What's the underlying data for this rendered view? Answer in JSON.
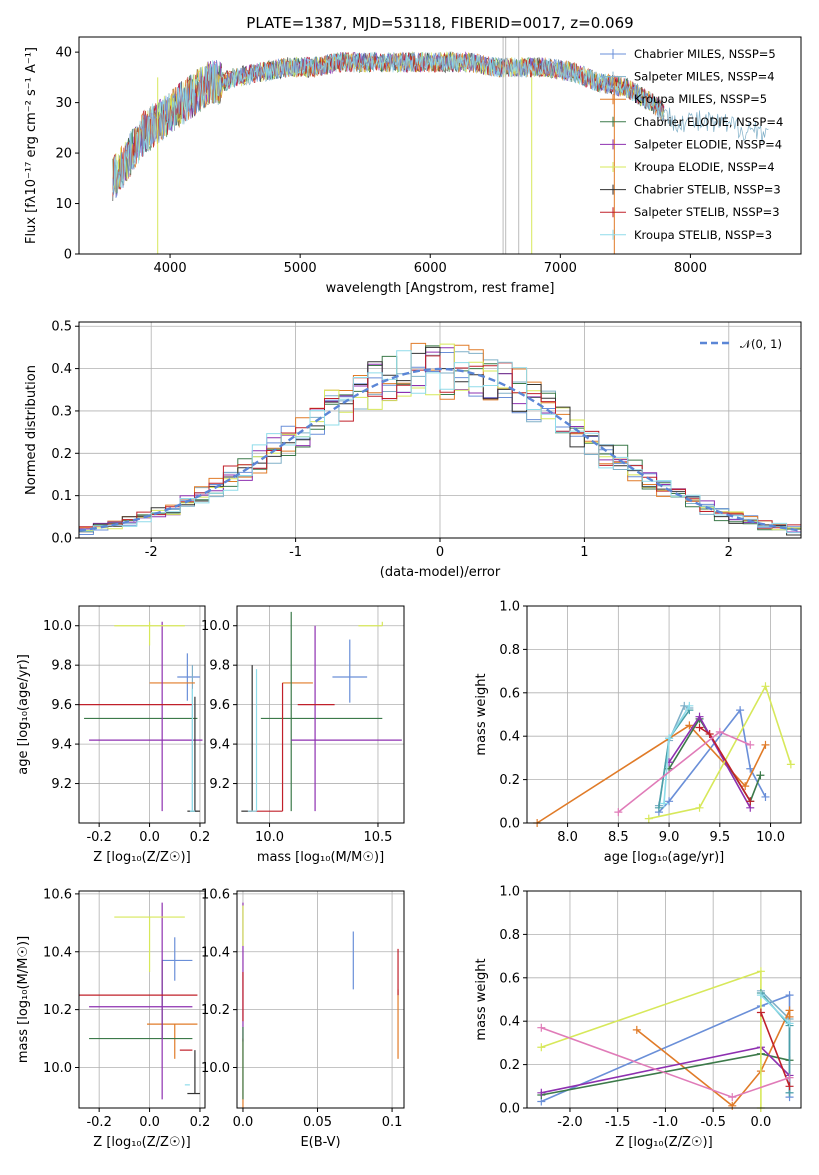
{
  "colors": [
    "#6a8fd8",
    "#80b0c8",
    "#e07b28",
    "#3c7a4a",
    "#8e30b0",
    "#d7e85a",
    "#333333",
    "#c0202a",
    "#8fdcea"
  ],
  "chart_data": [
    {
      "type": "line",
      "title": "PLATE=1387, MJD=53118, FIBERID=0017, z=0.069",
      "xlabel": "wavelength [Angstrom, rest frame]",
      "ylabel": "Flux [f$_\\lambda$10$^{-17}$ erg cm$^{-2}$ s$^{-1}$ A$^{-1}$]",
      "xlim": [
        3300,
        8850
      ],
      "ylim": [
        0,
        43
      ],
      "xticks": [
        4000,
        5000,
        6000,
        7000,
        8000
      ],
      "yticks": [
        0,
        10,
        20,
        30,
        40
      ],
      "legend_position": "upper-right",
      "series": [
        {
          "name": "Chabrier MILES, N$_{SSP}$=5",
          "x": [
            3600,
            7800
          ],
          "values": [
            15,
            28
          ]
        },
        {
          "name": "Salpeter MILES, N$_{SSP}$=4",
          "x": [
            3600,
            7800
          ],
          "values": [
            15,
            28
          ]
        },
        {
          "name": "Kroupa MILES, N$_{SSP}$=5",
          "x": [
            3600,
            7800
          ],
          "values": [
            15,
            28
          ]
        },
        {
          "name": "Chabrier ELODIE, N$_{SSP}$=4",
          "x": [
            3600,
            7800
          ],
          "values": [
            15,
            28
          ]
        },
        {
          "name": "Salpeter ELODIE, N$_{SSP}$=4",
          "x": [
            3600,
            7800
          ],
          "values": [
            15,
            28
          ]
        },
        {
          "name": "Kroupa ELODIE, N$_{SSP}$=4",
          "x": [
            3600,
            7800
          ],
          "values": [
            15,
            28
          ]
        },
        {
          "name": "Chabrier STELIB, N$_{SSP}$=3",
          "x": [
            3600,
            7800
          ],
          "values": [
            15,
            28
          ]
        },
        {
          "name": "Salpeter STELIB, N$_{SSP}$=3",
          "x": [
            3600,
            7800
          ],
          "values": [
            15,
            28
          ]
        },
        {
          "name": "Kroupa STELIB, N$_{SSP}$=3",
          "x": [
            3600,
            7800
          ],
          "values": [
            15,
            28
          ]
        }
      ],
      "profile_x": [
        3560,
        3600,
        3700,
        3800,
        3900,
        4000,
        4100,
        4200,
        4300,
        4400,
        4500,
        4700,
        4900,
        5100,
        5300,
        5500,
        5700,
        5900,
        6100,
        6300,
        6500,
        6700,
        6900,
        7100,
        7300,
        7500,
        7700,
        7800
      ],
      "profile_y": [
        15,
        16,
        20,
        24,
        26,
        28,
        30,
        32,
        34,
        34,
        35,
        36,
        37,
        37,
        38,
        38,
        38,
        38,
        38,
        38,
        37,
        37,
        37,
        36,
        34,
        33,
        30,
        28
      ]
    },
    {
      "type": "histogram",
      "xlabel": "(data-model)/error",
      "ylabel": "Normed distribution",
      "xlim": [
        -2.5,
        2.5
      ],
      "ylim": [
        0,
        0.51
      ],
      "xticks": [
        -2,
        -1,
        0,
        1,
        2
      ],
      "yticks": [
        0.0,
        0.1,
        0.2,
        0.3,
        0.4,
        0.5
      ],
      "legend_position": "upper-right",
      "reference_curve": {
        "name": "$\\mathcal{N}(0,1)$",
        "mean": 0,
        "sigma": 1
      },
      "bin_edges": [
        -2.5,
        -2.4,
        -2.3,
        -2.2,
        -2.1,
        -2.0,
        -1.9,
        -1.8,
        -1.7,
        -1.6,
        -1.5,
        -1.4,
        -1.3,
        -1.2,
        -1.1,
        -1.0,
        -0.9,
        -0.8,
        -0.7,
        -0.6,
        -0.5,
        -0.4,
        -0.3,
        -0.2,
        -0.1,
        0.0,
        0.1,
        0.2,
        0.3,
        0.4,
        0.5,
        0.6,
        0.7,
        0.8,
        0.9,
        1.0,
        1.1,
        1.2,
        1.3,
        1.4,
        1.5,
        1.6,
        1.7,
        1.8,
        1.9,
        2.0,
        2.1,
        2.2,
        2.3,
        2.4,
        2.5
      ]
    },
    {
      "type": "errorbar",
      "xlabel": "Z [log$_{10}$(Z/Z$_\\odot$)]",
      "ylabel": "age  [log$_{10}$(age/yr)]",
      "xlim": [
        -0.28,
        0.22
      ],
      "ylim": [
        9.0,
        10.1
      ],
      "xticks": [
        -0.2,
        0.0,
        0.2
      ],
      "yticks": [
        9.2,
        9.4,
        9.6,
        9.8,
        10.0
      ],
      "points": [
        {
          "x": 0.15,
          "y": 9.74,
          "xerr": [
            0.04,
            0.05
          ],
          "yerr": [
            0.12,
            0.12
          ]
        },
        {
          "x": 0.17,
          "y": 9.06,
          "xerr": [
            0.01,
            0.02
          ],
          "yerr": [
            0.0,
            0.74
          ]
        },
        {
          "x": 0.1,
          "y": 9.71,
          "xerr": [
            0.1,
            0.08
          ],
          "yerr": [
            0.0,
            0.0
          ]
        },
        {
          "x": -0.02,
          "y": 9.53,
          "xerr": [
            0.24,
            0.21
          ],
          "yerr": [
            0.0,
            0.0
          ]
        },
        {
          "x": 0.05,
          "y": 9.42,
          "xerr": [
            0.29,
            0.16
          ],
          "yerr": [
            0.36,
            0.6
          ]
        },
        {
          "x": 0.0,
          "y": 10.0,
          "xerr": [
            0.14,
            0.14
          ],
          "yerr": [
            0.1,
            0.02
          ]
        },
        {
          "x": 0.18,
          "y": 9.06,
          "xerr": [
            0.03,
            0.02
          ],
          "yerr": [
            0.0,
            0.58
          ]
        },
        {
          "x": 0.05,
          "y": 9.6,
          "xerr": [
            0.33,
            0.12
          ],
          "yerr": [
            0.0,
            0.0
          ]
        },
        {
          "x": 0.17,
          "y": 9.06,
          "xerr": [
            0.01,
            0.01
          ],
          "yerr": [
            0.0,
            0.62
          ]
        }
      ]
    },
    {
      "type": "errorbar",
      "xlabel": "mass [log$_{10}$(M/M$_\\odot$)]",
      "ylabel": "",
      "xlim": [
        9.85,
        10.62
      ],
      "ylim": [
        9.0,
        10.1
      ],
      "xticks": [
        10.0,
        10.5
      ],
      "yticks": [
        9.2,
        9.4,
        9.6,
        9.8,
        10.0
      ],
      "points": [
        {
          "x": 10.37,
          "y": 9.74,
          "xerr": [
            0.08,
            0.08
          ],
          "yerr": [
            0.13,
            0.19
          ]
        },
        {
          "x": 10.15,
          "y": 9.71,
          "xerr": [
            0.09,
            0.05
          ],
          "yerr": [
            0.0,
            0.0
          ]
        },
        {
          "x": 10.1,
          "y": 9.53,
          "xerr": [
            0.14,
            0.42
          ],
          "yerr": [
            0.47,
            0.54
          ]
        },
        {
          "x": 10.21,
          "y": 9.42,
          "xerr": [
            0.11,
            0.4
          ],
          "yerr": [
            0.36,
            0.58
          ]
        },
        {
          "x": 10.52,
          "y": 10.0,
          "xerr": [
            0.11,
            0.0
          ],
          "yerr": [
            0.0,
            0.02
          ]
        },
        {
          "x": 9.92,
          "y": 9.06,
          "xerr": [
            0.05,
            0.0
          ],
          "yerr": [
            0.0,
            0.74
          ]
        },
        {
          "x": 10.06,
          "y": 9.06,
          "xerr": [
            0.16,
            0.0
          ],
          "yerr": [
            0.0,
            0.65
          ]
        },
        {
          "x": 10.25,
          "y": 9.6,
          "xerr": [
            0.12,
            0.05
          ],
          "yerr": [
            0.0,
            0.0
          ]
        },
        {
          "x": 9.94,
          "y": 9.06,
          "xerr": [
            0.04,
            0.0
          ],
          "yerr": [
            0.0,
            0.72
          ]
        }
      ]
    },
    {
      "type": "line",
      "xlabel": "age  [log$_{10}$(age/yr)]",
      "ylabel": "mass weight",
      "xlim": [
        7.6,
        10.3
      ],
      "ylim": [
        0.0,
        1.0
      ],
      "xticks": [
        8.0,
        8.5,
        9.0,
        9.5,
        10.0
      ],
      "yticks": [
        0.0,
        0.2,
        0.4,
        0.6,
        0.8,
        1.0
      ],
      "series": [
        {
          "x": [
            8.9,
            9.0,
            9.7,
            9.8,
            9.95
          ],
          "values": [
            0.05,
            0.1,
            0.52,
            0.25,
            0.12
          ]
        },
        {
          "x": [
            8.9,
            9.0,
            9.15,
            9.2
          ],
          "values": [
            0.08,
            0.38,
            0.54,
            0.53
          ]
        },
        {
          "x": [
            7.7,
            9.2,
            9.75,
            9.95
          ],
          "values": [
            0.0,
            0.45,
            0.17,
            0.36
          ]
        },
        {
          "x": [
            9.0,
            9.3,
            9.8,
            9.9
          ],
          "values": [
            0.25,
            0.48,
            0.1,
            0.22
          ]
        },
        {
          "x": [
            9.0,
            9.3,
            9.8
          ],
          "values": [
            0.28,
            0.49,
            0.07
          ]
        },
        {
          "x": [
            8.8,
            9.3,
            9.95,
            10.2
          ],
          "values": [
            0.02,
            0.07,
            0.63,
            0.27
          ]
        },
        {
          "x": [
            8.9,
            9.0,
            9.2
          ],
          "values": [
            0.07,
            0.39,
            0.52
          ]
        },
        {
          "x": [
            9.3,
            9.4,
            9.8
          ],
          "values": [
            0.44,
            0.41,
            0.1
          ]
        },
        {
          "x": [
            8.95,
            9.0,
            9.2
          ],
          "values": [
            0.09,
            0.39,
            0.54
          ]
        },
        {
          "x": [
            8.5,
            9.5,
            9.8
          ],
          "values": [
            0.05,
            0.42,
            0.36
          ]
        }
      ]
    },
    {
      "type": "errorbar",
      "xlabel": "Z [log$_{10}$(Z/Z$_\\odot$)]",
      "ylabel": "mass [log$_{10}$(M/M$_\\odot$)]",
      "xlim": [
        -0.28,
        0.22
      ],
      "ylim": [
        9.86,
        10.61
      ],
      "xticks": [
        -0.2,
        0.0,
        0.2
      ],
      "yticks": [
        10.0,
        10.2,
        10.4,
        10.6
      ],
      "points": [
        {
          "x": 0.1,
          "y": 10.37,
          "xerr": [
            0.05,
            0.07
          ],
          "yerr": [
            0.07,
            0.08
          ]
        },
        {
          "x": 0.15,
          "y": 10.37,
          "xerr": [
            0.0,
            0.0
          ],
          "yerr": [
            0.0,
            0.0
          ]
        },
        {
          "x": 0.1,
          "y": 10.15,
          "xerr": [
            0.11,
            0.09
          ],
          "yerr": [
            0.12,
            0.0
          ]
        },
        {
          "x": 0.05,
          "y": 10.1,
          "xerr": [
            0.29,
            0.12
          ],
          "yerr": [
            0.0,
            0.27
          ]
        },
        {
          "x": 0.05,
          "y": 10.21,
          "xerr": [
            0.29,
            0.12
          ],
          "yerr": [
            0.32,
            0.36
          ]
        },
        {
          "x": 0.0,
          "y": 10.52,
          "xerr": [
            0.14,
            0.14
          ],
          "yerr": [
            0.19,
            0.0
          ]
        },
        {
          "x": 0.18,
          "y": 9.91,
          "xerr": [
            0.03,
            0.02
          ],
          "yerr": [
            0.0,
            0.15
          ]
        },
        {
          "x": 0.17,
          "y": 10.06,
          "xerr": [
            0.05,
            0.0
          ],
          "yerr": [
            0.0,
            0.0
          ]
        },
        {
          "x": 0.05,
          "y": 10.25,
          "xerr": [
            0.33,
            0.14
          ],
          "yerr": [
            0.0,
            0.0
          ]
        },
        {
          "x": 0.16,
          "y": 9.94,
          "xerr": [
            0.02,
            0.0
          ],
          "yerr": [
            0.0,
            0.0
          ]
        }
      ]
    },
    {
      "type": "errorbar",
      "xlabel": "E(B-V)",
      "ylabel": "",
      "xlim": [
        -0.004,
        0.108
      ],
      "ylim": [
        9.86,
        10.61
      ],
      "xticks": [
        0.0,
        0.05,
        0.1
      ],
      "yticks": [
        10.0,
        10.2,
        10.4,
        10.6
      ],
      "points": [
        {
          "x": 0.074,
          "y": 10.37,
          "xerr": [
            0.0,
            0.0
          ],
          "yerr": [
            0.1,
            0.1
          ]
        },
        {
          "x": 0.104,
          "y": 10.15,
          "xerr": [
            0.0,
            0.0
          ],
          "yerr": [
            0.12,
            0.12
          ]
        },
        {
          "x": 0.104,
          "y": 10.25,
          "xerr": [
            0.0,
            0.0
          ],
          "yerr": [
            0.0,
            0.16
          ]
        },
        {
          "x": 0.0,
          "y": 10.1,
          "xerr": [
            0.0,
            0.0
          ],
          "yerr": [
            0.24,
            0.0
          ]
        },
        {
          "x": 0.0,
          "y": 10.21,
          "xerr": [
            0.0,
            0.0
          ],
          "yerr": [
            0.12,
            0.36
          ]
        },
        {
          "x": 0.0,
          "y": 10.52,
          "xerr": [
            0.0,
            0.0
          ],
          "yerr": [
            0.1,
            0.04
          ]
        },
        {
          "x": 0.0,
          "y": 9.95,
          "xerr": [
            0.0,
            0.0
          ],
          "yerr": [
            0.0,
            0.0
          ]
        },
        {
          "x": 0.0,
          "y": 10.16,
          "xerr": [
            0.0,
            0.0
          ],
          "yerr": [
            0.0,
            0.17
          ]
        },
        {
          "x": 0.0,
          "y": 9.94,
          "xerr": [
            0.0,
            0.0
          ],
          "yerr": [
            0.05,
            0.2
          ]
        }
      ]
    },
    {
      "type": "line",
      "xlabel": "Z [log$_{10}$(Z/Z$_\\odot$)]",
      "ylabel": "mass weight",
      "xlim": [
        -2.45,
        0.42
      ],
      "ylim": [
        0.0,
        1.0
      ],
      "xticks": [
        -2.0,
        -1.5,
        -1.0,
        -0.5,
        0.0
      ],
      "yticks": [
        0.0,
        0.2,
        0.4,
        0.6,
        0.8,
        1.0
      ],
      "series": [
        {
          "x": [
            -2.3,
            0.0,
            0.3,
            0.3
          ],
          "values": [
            0.03,
            0.47,
            0.52,
            0.05
          ]
        },
        {
          "x": [
            0.0,
            0.3,
            0.3
          ],
          "values": [
            0.54,
            0.41,
            0.07
          ]
        },
        {
          "x": [
            -1.3,
            -0.3,
            0.0,
            0.3,
            0.3
          ],
          "values": [
            0.36,
            0.01,
            0.17,
            0.45,
            0.42
          ]
        },
        {
          "x": [
            -2.3,
            0.0,
            0.3
          ],
          "values": [
            0.06,
            0.25,
            0.22
          ]
        },
        {
          "x": [
            -2.3,
            0.0,
            0.3
          ],
          "values": [
            0.07,
            0.28,
            0.15
          ]
        },
        {
          "x": [
            -2.3,
            0.0,
            0.0
          ],
          "values": [
            0.28,
            0.63,
            0.0
          ]
        },
        {
          "x": [
            0.0,
            0.3,
            0.3
          ],
          "values": [
            0.53,
            0.38,
            0.07
          ]
        },
        {
          "x": [
            0.0,
            0.3
          ],
          "values": [
            0.44,
            0.1
          ]
        },
        {
          "x": [
            0.0,
            0.3
          ],
          "values": [
            0.52,
            0.39
          ]
        },
        {
          "x": [
            -2.3,
            -0.3,
            0.3
          ],
          "values": [
            0.37,
            0.05,
            0.14
          ]
        }
      ]
    }
  ]
}
